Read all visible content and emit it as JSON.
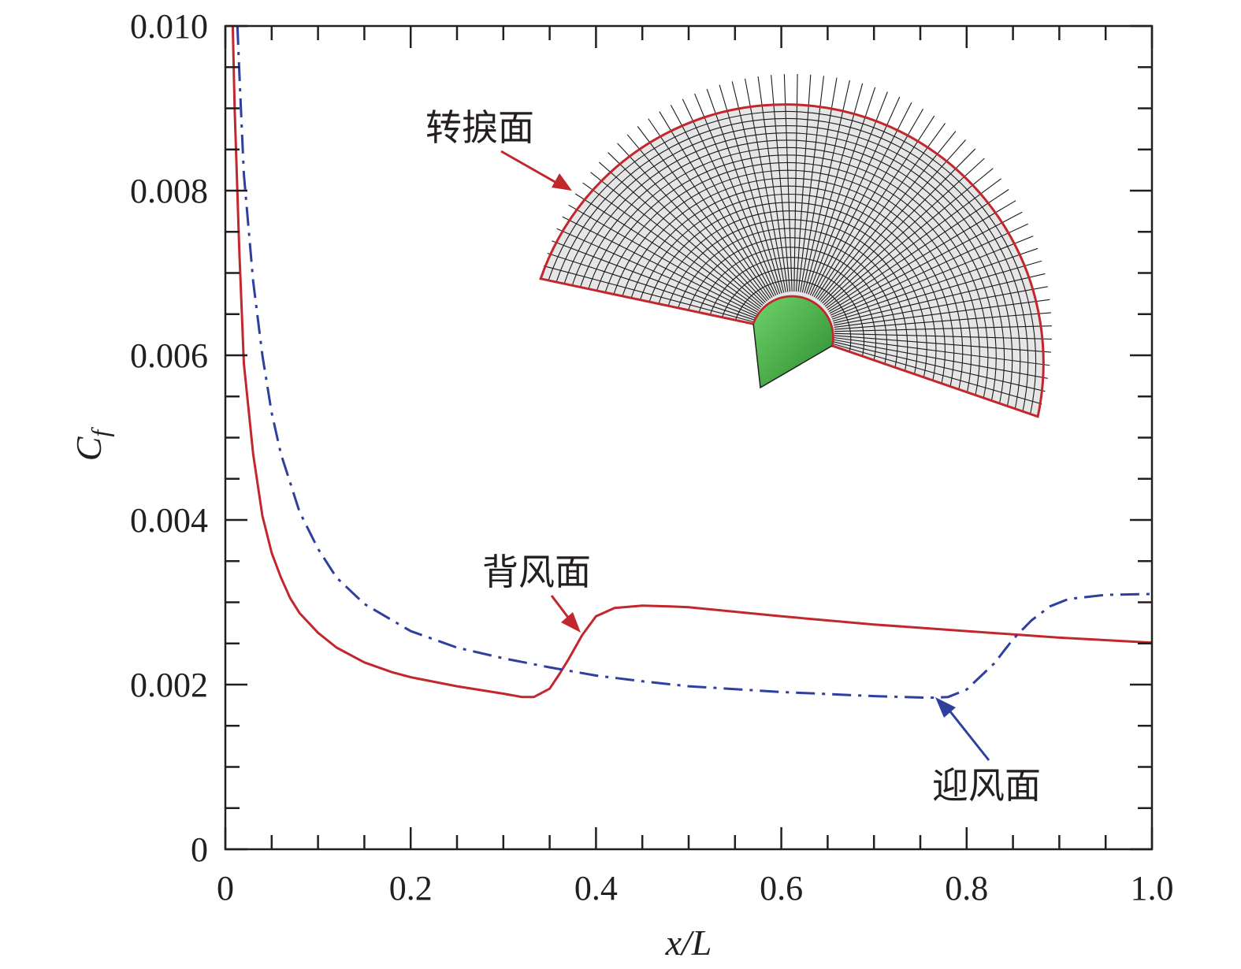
{
  "chart_data": {
    "type": "line",
    "xlabel": "x/L",
    "ylabel": "Cf",
    "ylabel_main": "C",
    "ylabel_sub": "f",
    "xlim": [
      0,
      1.0
    ],
    "ylim": [
      0,
      0.01
    ],
    "x_ticks": [
      "0",
      "0.2",
      "0.4",
      "0.6",
      "0.8",
      "1.0"
    ],
    "x_tick_values": [
      0,
      0.2,
      0.4,
      0.6,
      0.8,
      1.0
    ],
    "y_ticks": [
      "0",
      "0.002",
      "0.004",
      "0.006",
      "0.008",
      "0.010"
    ],
    "y_tick_values": [
      0,
      0.002,
      0.004,
      0.006,
      0.008,
      0.01
    ],
    "grid": false,
    "series": [
      {
        "name": "背风面",
        "color": "#c1272d",
        "style": "solid",
        "x": [
          0.008,
          0.01,
          0.015,
          0.02,
          0.03,
          0.04,
          0.05,
          0.06,
          0.07,
          0.08,
          0.1,
          0.12,
          0.15,
          0.18,
          0.2,
          0.25,
          0.3,
          0.32,
          0.333,
          0.35,
          0.36,
          0.37,
          0.385,
          0.4,
          0.42,
          0.45,
          0.48,
          0.5,
          0.6,
          0.7,
          0.8,
          0.9,
          1.0
        ],
        "y": [
          0.01,
          0.009,
          0.0073,
          0.0059,
          0.0048,
          0.00405,
          0.0036,
          0.0033,
          0.00305,
          0.00287,
          0.00263,
          0.00245,
          0.00227,
          0.00215,
          0.00209,
          0.00198,
          0.00189,
          0.00185,
          0.00185,
          0.00195,
          0.00212,
          0.0023,
          0.0026,
          0.00283,
          0.00293,
          0.00296,
          0.00295,
          0.00294,
          0.00283,
          0.00273,
          0.00265,
          0.00257,
          0.00251
        ]
      },
      {
        "name": "迎风面",
        "color": "#2e3f9e",
        "style": "dashdot",
        "x": [
          0.013,
          0.016,
          0.02,
          0.03,
          0.04,
          0.05,
          0.06,
          0.08,
          0.1,
          0.12,
          0.15,
          0.2,
          0.25,
          0.3,
          0.35,
          0.4,
          0.45,
          0.5,
          0.6,
          0.7,
          0.76,
          0.78,
          0.8,
          0.83,
          0.85,
          0.87,
          0.89,
          0.91,
          0.95,
          1.0
        ],
        "y": [
          0.01,
          0.0092,
          0.0082,
          0.0069,
          0.006,
          0.0053,
          0.0048,
          0.0041,
          0.00365,
          0.0033,
          0.00298,
          0.00265,
          0.00245,
          0.00232,
          0.00221,
          0.00211,
          0.00204,
          0.00198,
          0.00191,
          0.00186,
          0.00184,
          0.00185,
          0.00194,
          0.00226,
          0.00255,
          0.00278,
          0.00295,
          0.00304,
          0.00309,
          0.0031
        ]
      }
    ],
    "annotations": [
      {
        "text": "转捩面"
      },
      {
        "text": "背风面"
      },
      {
        "text": "迎风面"
      }
    ]
  }
}
